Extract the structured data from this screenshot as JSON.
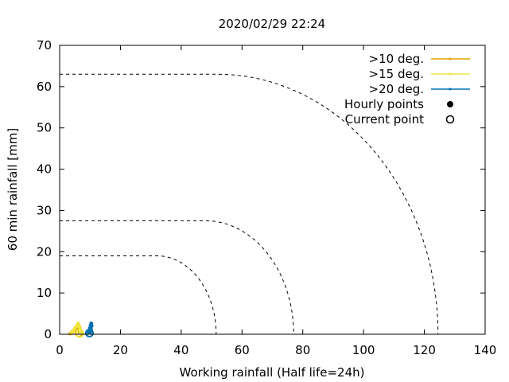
{
  "chart_data": {
    "type": "scatter",
    "title": "2020/02/29 22:24",
    "xlabel": "Working rainfall (Half life=24h)",
    "ylabel": "60 min rainfall [mm]",
    "xlim": [
      0,
      140
    ],
    "ylim": [
      0,
      70
    ],
    "xticks": [
      0,
      20,
      40,
      60,
      80,
      100,
      120,
      140
    ],
    "yticks": [
      0,
      10,
      20,
      30,
      40,
      50,
      60,
      70
    ],
    "grid": false,
    "legend_position": "top-right",
    "legend": [
      {
        "label": ">10 deg.",
        "kind": "line",
        "color": "#e0a000"
      },
      {
        "label": ">15 deg.",
        "kind": "line",
        "color": "#f0e442"
      },
      {
        "label": ">20 deg.",
        "kind": "line",
        "color": "#0072b2"
      },
      {
        "label": "Hourly points",
        "kind": "filled-point",
        "color": "#000000"
      },
      {
        "label": "Current point",
        "kind": "open-point",
        "color": "#000000"
      }
    ],
    "thresholds": [
      {
        "name": ">20 deg.",
        "y_max": 19,
        "x_max": 51.5,
        "flat_until_x": 32
      },
      {
        "name": ">15 deg.",
        "y_max": 27.5,
        "x_max": 77,
        "flat_until_x": 48
      },
      {
        "name": ">10 deg.",
        "y_max": 63,
        "x_max": 124.5,
        "flat_until_x": 52
      }
    ],
    "series": [
      {
        "name": ">10 deg.",
        "color": "#e0a000",
        "hourly": [
          [
            3.5,
            0.2
          ],
          [
            4.2,
            0.6
          ],
          [
            4.8,
            1.0
          ],
          [
            5.2,
            1.3
          ],
          [
            5.8,
            1.8
          ],
          [
            6.2,
            2.2
          ],
          [
            6.5,
            1.6
          ],
          [
            6.8,
            0.9
          ],
          [
            6.6,
            0.4
          ]
        ],
        "current": [
          6.4,
          0.3
        ]
      },
      {
        "name": ">15 deg.",
        "color": "#f0e442",
        "hourly": [
          [
            3.8,
            0.3
          ],
          [
            4.5,
            0.8
          ],
          [
            5.0,
            1.4
          ],
          [
            5.6,
            2.0
          ],
          [
            6.1,
            2.6
          ],
          [
            6.4,
            1.9
          ],
          [
            6.7,
            1.1
          ],
          [
            6.9,
            0.5
          ]
        ],
        "current": [
          6.6,
          0.2
        ]
      },
      {
        "name": ">20 deg.",
        "color": "#0072b2",
        "hourly": [
          [
            9.6,
            0.4
          ],
          [
            9.8,
            0.9
          ],
          [
            10.0,
            1.5
          ],
          [
            10.2,
            2.1
          ],
          [
            10.4,
            2.6
          ],
          [
            10.5,
            2.0
          ],
          [
            10.3,
            1.2
          ],
          [
            10.1,
            0.6
          ]
        ],
        "current": [
          9.8,
          0.3
        ]
      }
    ]
  }
}
